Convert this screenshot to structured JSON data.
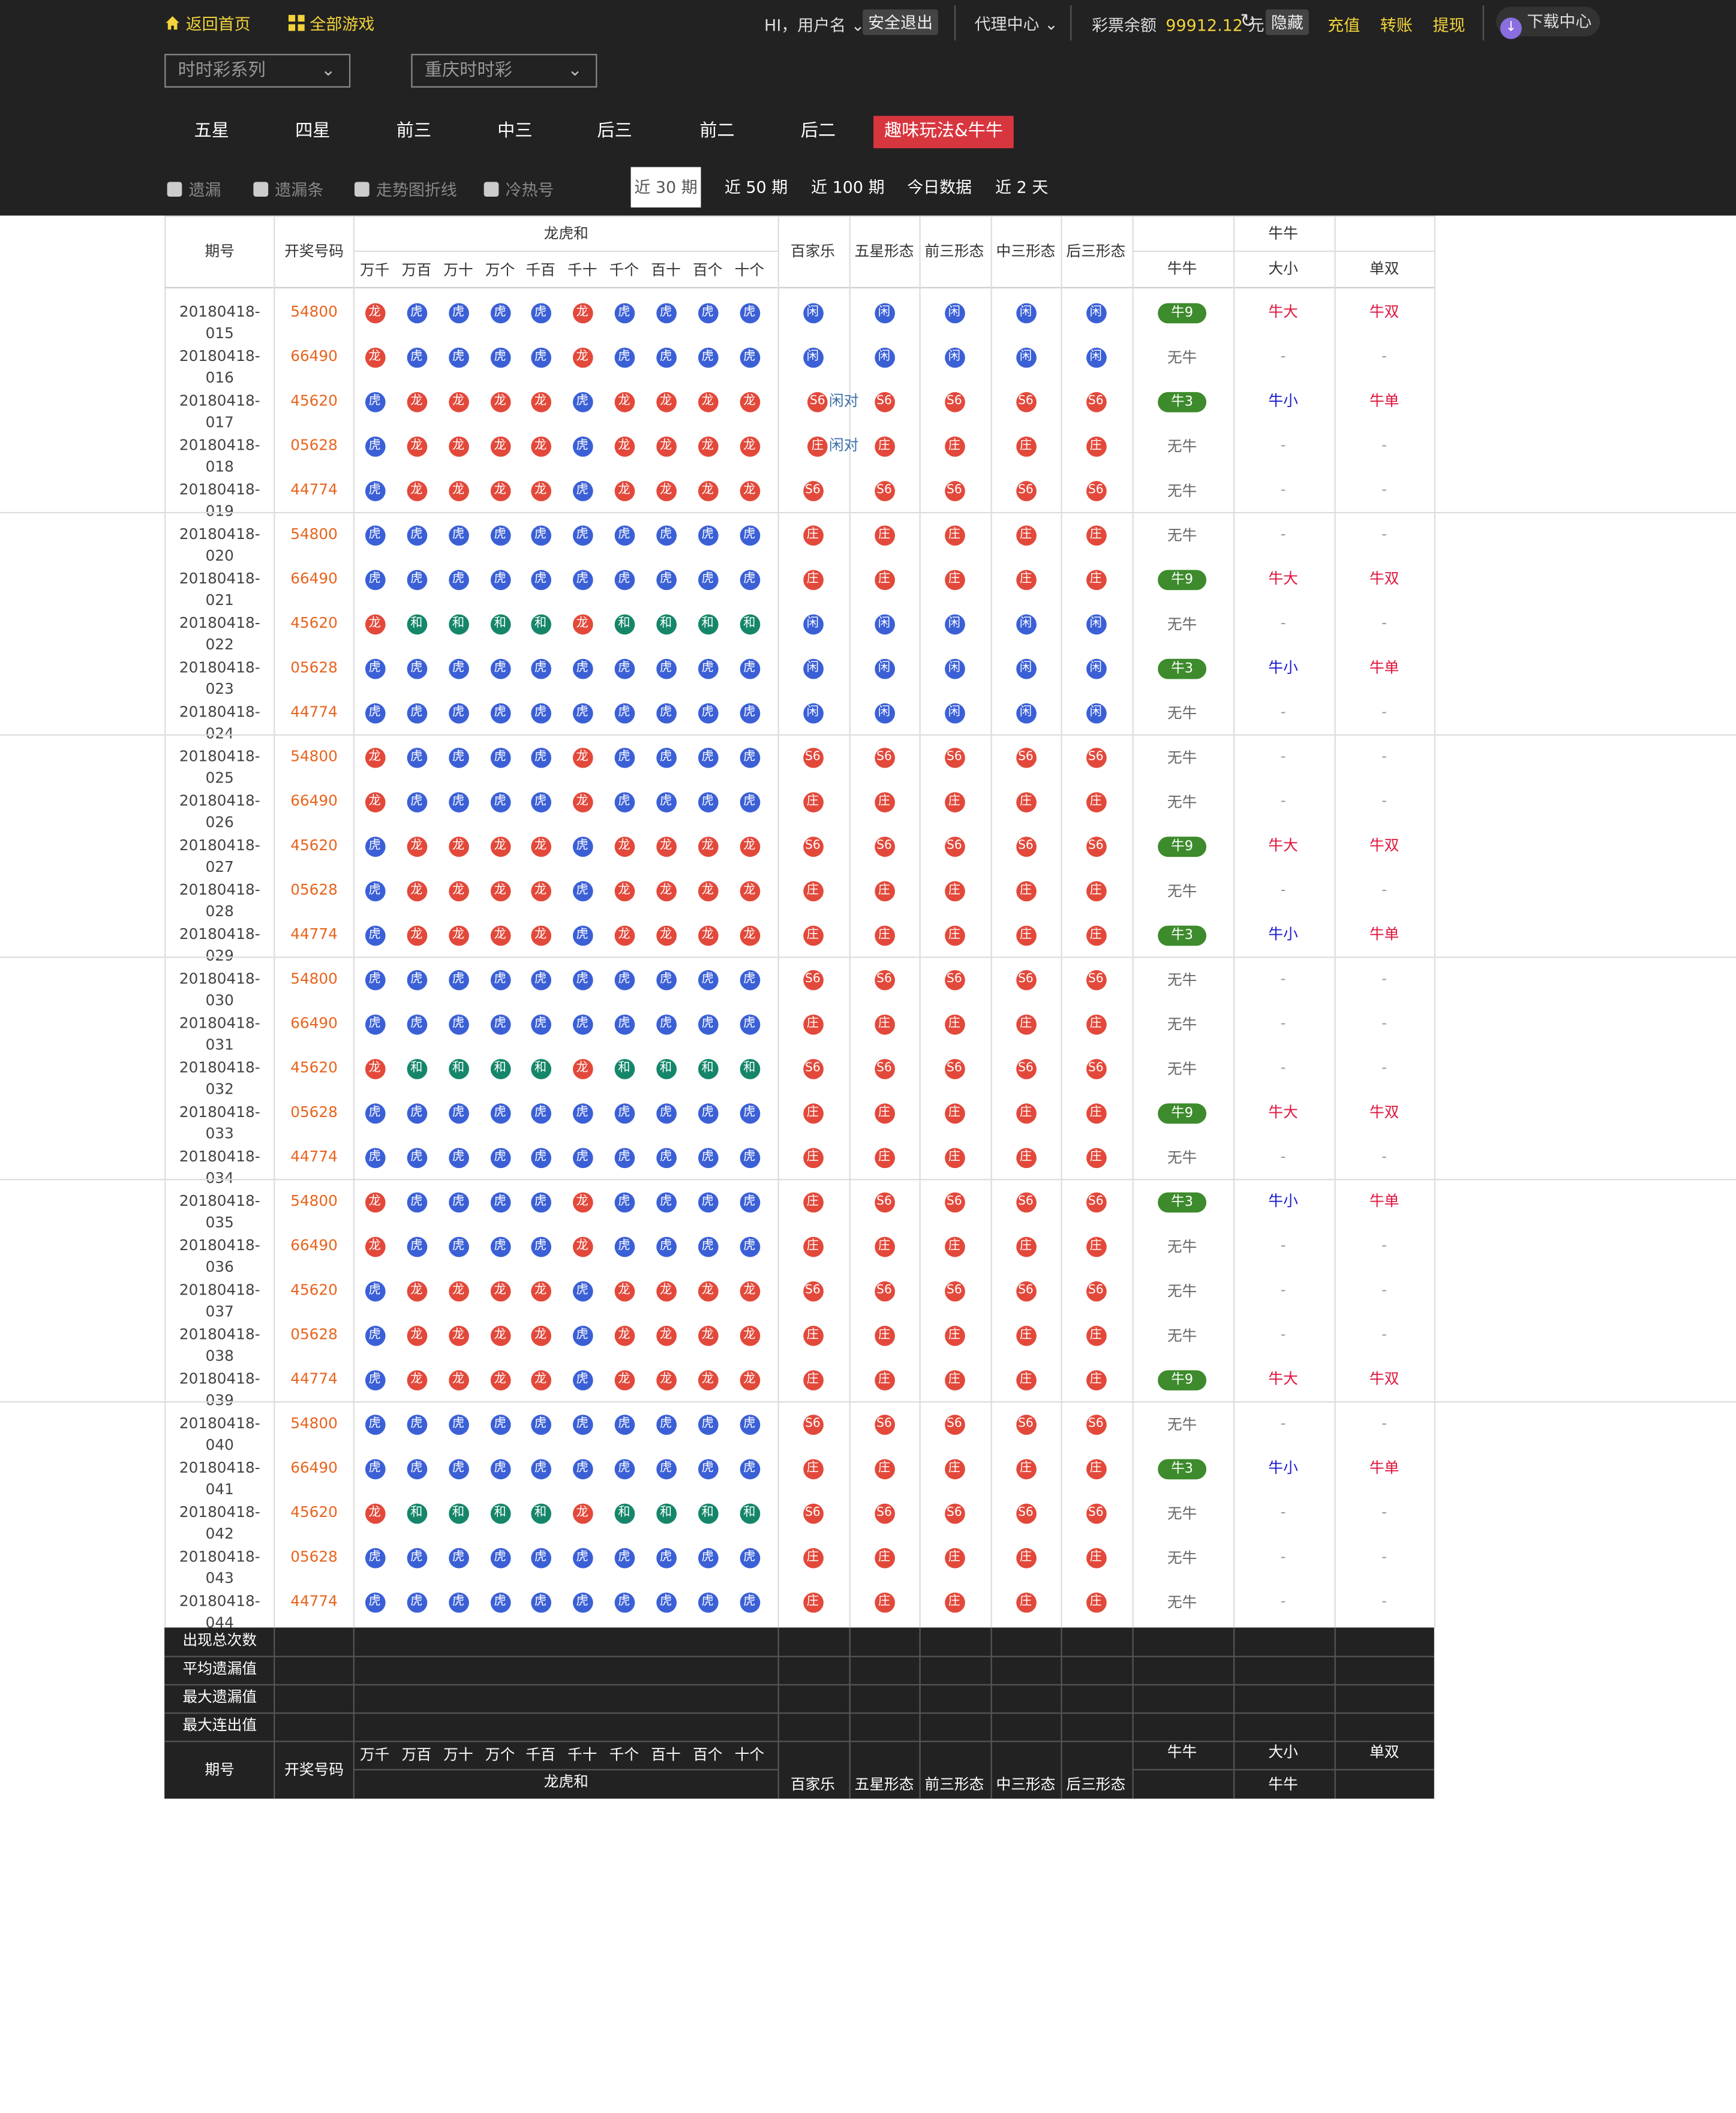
{
  "topbar": {
    "home": "返回首页",
    "all_games": "全部游戏",
    "greeting": "HI，用户名",
    "logout": "安全退出",
    "agent": "代理中心",
    "balance_label": "彩票余额",
    "balance": "99912.12",
    "balance_unit": "元",
    "hide": "隐藏",
    "recharge": "充值",
    "transfer": "转账",
    "withdraw": "提现",
    "download": "下载中心"
  },
  "selects": {
    "series": "时时彩系列",
    "game": "重庆时时彩"
  },
  "tabs": [
    "五星",
    "四星",
    "前三",
    "中三",
    "后三",
    "前二",
    "后二",
    "趣味玩法&牛牛"
  ],
  "active_tab": "趣味玩法&牛牛",
  "options": [
    "遗漏",
    "遗漏条",
    "走势图折线",
    "冷热号"
  ],
  "periods": [
    "近 30 期",
    "近 50 期",
    "近 100 期",
    "今日数据",
    "近 2 天"
  ],
  "active_period": "近 30 期",
  "headers": {
    "issue": "期号",
    "number": "开奖号码",
    "lhh": "龙虎和",
    "lhh_cols": [
      "万千",
      "万百",
      "万十",
      "万个",
      "千百",
      "千十",
      "千个",
      "百十",
      "百个",
      "十个"
    ],
    "bjl": "百家乐",
    "wuxing": "五星形态",
    "qiansan": "前三形态",
    "zhongsan": "中三形态",
    "housan": "后三形态",
    "niuniu": "牛牛",
    "niu_cols": [
      "牛牛",
      "大小",
      "单双"
    ]
  },
  "rows": [
    {
      "issue": "20180418-015",
      "num": "54800",
      "lhh": "LHHHHLHHHH",
      "bjl": "X",
      "bjl_note": "",
      "w": "X",
      "q": "X",
      "z": "X",
      "h": "X",
      "niu": "牛9",
      "dx": "牛大",
      "ds": "牛双"
    },
    {
      "issue": "20180418-016",
      "num": "66490",
      "lhh": "LHHHHLHHHH",
      "bjl": "X",
      "bjl_note": "",
      "w": "X",
      "q": "X",
      "z": "X",
      "h": "X",
      "niu": "无牛",
      "dx": "-",
      "ds": "-"
    },
    {
      "issue": "20180418-017",
      "num": "45620",
      "lhh": "HLLLLHLLLL",
      "bjl": "S",
      "bjl_note": "闲对",
      "w": "S",
      "q": "S",
      "z": "S",
      "h": "S",
      "niu": "牛3",
      "dx": "牛小",
      "ds": "牛单"
    },
    {
      "issue": "20180418-018",
      "num": "05628",
      "lhh": "HLLLLHLLLL",
      "bjl": "Z",
      "bjl_note": "闲对",
      "w": "Z",
      "q": "Z",
      "z": "Z",
      "h": "Z",
      "niu": "无牛",
      "dx": "-",
      "ds": "-"
    },
    {
      "issue": "20180418-019",
      "num": "44774",
      "lhh": "HLLLLHLLLL",
      "bjl": "S",
      "bjl_note": "",
      "w": "S",
      "q": "S",
      "z": "S",
      "h": "S",
      "niu": "无牛",
      "dx": "-",
      "ds": "-"
    },
    {
      "issue": "20180418-020",
      "num": "54800",
      "lhh": "HHHHHHHHHH",
      "bjl": "Z",
      "bjl_note": "",
      "w": "Z",
      "q": "Z",
      "z": "Z",
      "h": "Z",
      "niu": "无牛",
      "dx": "-",
      "ds": "-"
    },
    {
      "issue": "20180418-021",
      "num": "66490",
      "lhh": "HHHHHHHHHH",
      "bjl": "Z",
      "bjl_note": "",
      "w": "Z",
      "q": "Z",
      "z": "Z",
      "h": "Z",
      "niu": "牛9",
      "dx": "牛大",
      "ds": "牛双"
    },
    {
      "issue": "20180418-022",
      "num": "45620",
      "lhh": "LEEEELEEEE",
      "bjl": "X",
      "bjl_note": "",
      "w": "X",
      "q": "X",
      "z": "X",
      "h": "X",
      "niu": "无牛",
      "dx": "-",
      "ds": "-"
    },
    {
      "issue": "20180418-023",
      "num": "05628",
      "lhh": "HHHHHHHHHH",
      "bjl": "X",
      "bjl_note": "",
      "w": "X",
      "q": "X",
      "z": "X",
      "h": "X",
      "niu": "牛3",
      "dx": "牛小",
      "ds": "牛单"
    },
    {
      "issue": "20180418-024",
      "num": "44774",
      "lhh": "HHHHHHHHHH",
      "bjl": "X",
      "bjl_note": "",
      "w": "X",
      "q": "X",
      "z": "X",
      "h": "X",
      "niu": "无牛",
      "dx": "-",
      "ds": "-"
    },
    {
      "issue": "20180418-025",
      "num": "54800",
      "lhh": "LHHHHLHHHH",
      "bjl": "S",
      "bjl_note": "",
      "w": "S",
      "q": "S",
      "z": "S",
      "h": "S",
      "niu": "无牛",
      "dx": "-",
      "ds": "-"
    },
    {
      "issue": "20180418-026",
      "num": "66490",
      "lhh": "LHHHHLHHHH",
      "bjl": "Z",
      "bjl_note": "",
      "w": "Z",
      "q": "Z",
      "z": "Z",
      "h": "Z",
      "niu": "无牛",
      "dx": "-",
      "ds": "-"
    },
    {
      "issue": "20180418-027",
      "num": "45620",
      "lhh": "HLLLLHLLLL",
      "bjl": "S",
      "bjl_note": "",
      "w": "S",
      "q": "S",
      "z": "S",
      "h": "S",
      "niu": "牛9",
      "dx": "牛大",
      "ds": "牛双"
    },
    {
      "issue": "20180418-028",
      "num": "05628",
      "lhh": "HLLLLHLLLL",
      "bjl": "Z",
      "bjl_note": "",
      "w": "Z",
      "q": "Z",
      "z": "Z",
      "h": "Z",
      "niu": "无牛",
      "dx": "-",
      "ds": "-"
    },
    {
      "issue": "20180418-029",
      "num": "44774",
      "lhh": "HLLLLHLLLL",
      "bjl": "Z",
      "bjl_note": "",
      "w": "Z",
      "q": "Z",
      "z": "Z",
      "h": "Z",
      "niu": "牛3",
      "dx": "牛小",
      "ds": "牛单"
    },
    {
      "issue": "20180418-030",
      "num": "54800",
      "lhh": "HHHHHHHHHH",
      "bjl": "S",
      "bjl_note": "",
      "w": "S",
      "q": "S",
      "z": "S",
      "h": "S",
      "niu": "无牛",
      "dx": "-",
      "ds": "-"
    },
    {
      "issue": "20180418-031",
      "num": "66490",
      "lhh": "HHHHHHHHHH",
      "bjl": "Z",
      "bjl_note": "",
      "w": "Z",
      "q": "Z",
      "z": "Z",
      "h": "Z",
      "niu": "无牛",
      "dx": "-",
      "ds": "-"
    },
    {
      "issue": "20180418-032",
      "num": "45620",
      "lhh": "LEEEELEEEE",
      "bjl": "S",
      "bjl_note": "",
      "w": "S",
      "q": "S",
      "z": "S",
      "h": "S",
      "niu": "无牛",
      "dx": "-",
      "ds": "-"
    },
    {
      "issue": "20180418-033",
      "num": "05628",
      "lhh": "HHHHHHHHHH",
      "bjl": "Z",
      "bjl_note": "",
      "w": "Z",
      "q": "Z",
      "z": "Z",
      "h": "Z",
      "niu": "牛9",
      "dx": "牛大",
      "ds": "牛双"
    },
    {
      "issue": "20180418-034",
      "num": "44774",
      "lhh": "HHHHHHHHHH",
      "bjl": "Z",
      "bjl_note": "",
      "w": "Z",
      "q": "Z",
      "z": "Z",
      "h": "Z",
      "niu": "无牛",
      "dx": "-",
      "ds": "-"
    },
    {
      "issue": "20180418-035",
      "num": "54800",
      "lhh": "LHHHHLHHHH",
      "bjl": "Z",
      "bjl_note": "",
      "w": "S",
      "q": "S",
      "z": "S",
      "h": "S",
      "niu": "牛3",
      "dx": "牛小",
      "ds": "牛单"
    },
    {
      "issue": "20180418-036",
      "num": "66490",
      "lhh": "LHHHHLHHHH",
      "bjl": "Z",
      "bjl_note": "",
      "w": "Z",
      "q": "Z",
      "z": "Z",
      "h": "Z",
      "niu": "无牛",
      "dx": "-",
      "ds": "-"
    },
    {
      "issue": "20180418-037",
      "num": "45620",
      "lhh": "HLLLLHLLLL",
      "bjl": "S",
      "bjl_note": "",
      "w": "S",
      "q": "S",
      "z": "S",
      "h": "S",
      "niu": "无牛",
      "dx": "-",
      "ds": "-"
    },
    {
      "issue": "20180418-038",
      "num": "05628",
      "lhh": "HLLLLHLLLL",
      "bjl": "Z",
      "bjl_note": "",
      "w": "Z",
      "q": "Z",
      "z": "Z",
      "h": "Z",
      "niu": "无牛",
      "dx": "-",
      "ds": "-"
    },
    {
      "issue": "20180418-039",
      "num": "44774",
      "lhh": "HLLLLHLLLL",
      "bjl": "Z",
      "bjl_note": "",
      "w": "Z",
      "q": "Z",
      "z": "Z",
      "h": "Z",
      "niu": "牛9",
      "dx": "牛大",
      "ds": "牛双"
    },
    {
      "issue": "20180418-040",
      "num": "54800",
      "lhh": "HHHHHHHHHH",
      "bjl": "S",
      "bjl_note": "",
      "w": "S",
      "q": "S",
      "z": "S",
      "h": "S",
      "niu": "无牛",
      "dx": "-",
      "ds": "-"
    },
    {
      "issue": "20180418-041",
      "num": "66490",
      "lhh": "HHHHHHHHHH",
      "bjl": "Z",
      "bjl_note": "",
      "w": "Z",
      "q": "Z",
      "z": "Z",
      "h": "Z",
      "niu": "牛3",
      "dx": "牛小",
      "ds": "牛单"
    },
    {
      "issue": "20180418-042",
      "num": "45620",
      "lhh": "LEEEELEEEE",
      "bjl": "S",
      "bjl_note": "",
      "w": "S",
      "q": "S",
      "z": "S",
      "h": "S",
      "niu": "无牛",
      "dx": "-",
      "ds": "-"
    },
    {
      "issue": "20180418-043",
      "num": "05628",
      "lhh": "HHHHHHHHHH",
      "bjl": "Z",
      "bjl_note": "",
      "w": "Z",
      "q": "Z",
      "z": "Z",
      "h": "Z",
      "niu": "无牛",
      "dx": "-",
      "ds": "-"
    },
    {
      "issue": "20180418-044",
      "num": "44774",
      "lhh": "HHHHHHHHHH",
      "bjl": "Z",
      "bjl_note": "",
      "w": "Z",
      "q": "Z",
      "z": "Z",
      "h": "Z",
      "niu": "无牛",
      "dx": "-",
      "ds": "-"
    }
  ],
  "ball_text": {
    "L": "龙",
    "H": "虎",
    "E": "和",
    "X": "闲",
    "Z": "庄",
    "S": "S6"
  },
  "stats_labels": [
    "出现总次数",
    "平均遗漏值",
    "最大遗漏值",
    "最大连出值"
  ],
  "colors": {
    "dragon": "#e2493b",
    "tiger": "#3b60d6",
    "tie": "#16866a",
    "niu_pill": "#3d8b2c",
    "number": "#e8641e",
    "big": "#e0143c",
    "small": "#1a1acc",
    "active_tab": "#d8363f",
    "header_bg": "#222222"
  }
}
